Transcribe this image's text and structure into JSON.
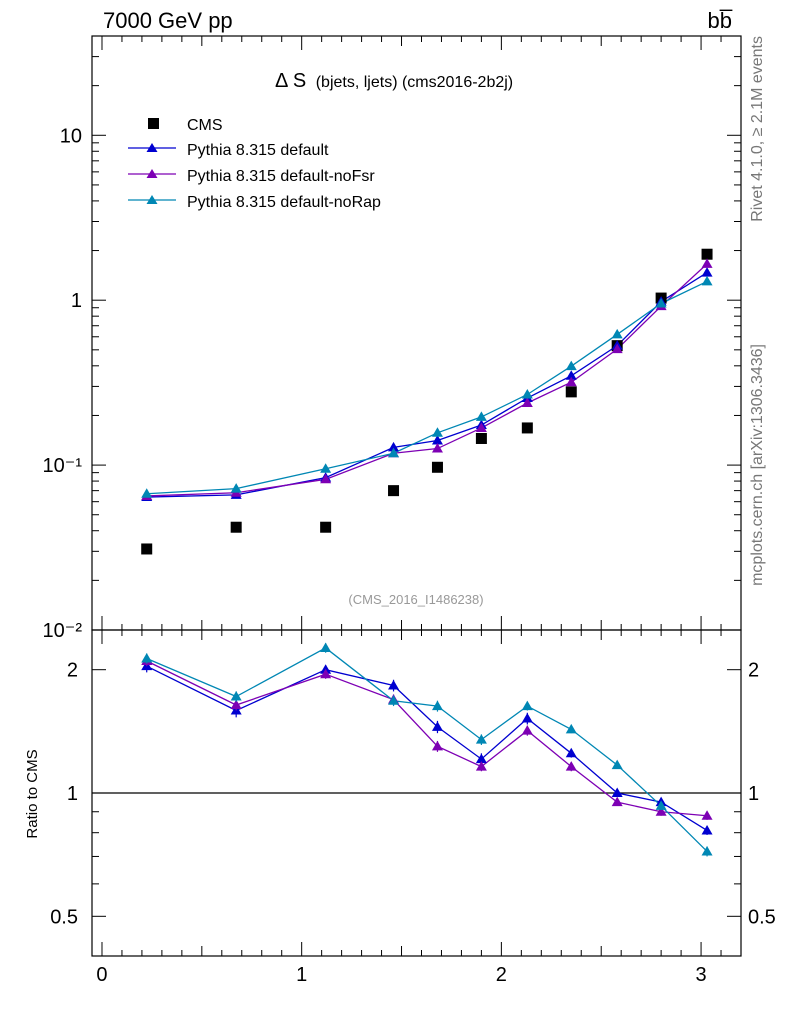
{
  "header": {
    "left": "7000 GeV pp",
    "right": "bb̅"
  },
  "side_labels": {
    "rivet": "Rivet 4.1.0, ≥ 2.1M events",
    "mcplots": "mcplots.cern.ch [arXiv:1306.3436]"
  },
  "chart_data": [
    {
      "type": "scatter",
      "title": "Δ S",
      "title_suffix": "(bjets, ljets) (cms2016-2b2j)",
      "watermark": "(CMS_2016_I1486238)",
      "yscale": "log",
      "ylim": [
        0.01,
        40
      ],
      "xlim": [
        -0.05,
        3.2
      ],
      "y_tick_labels": [
        "10",
        "1",
        "10⁻¹",
        "10⁻²"
      ],
      "x": [
        0.224,
        0.672,
        1.12,
        1.46,
        1.68,
        1.9,
        2.13,
        2.35,
        2.58,
        2.8,
        3.03
      ],
      "legend_position": "top-left",
      "series": [
        {
          "name": "CMS",
          "color": "#000000",
          "marker": "square",
          "values": [
            0.031,
            0.042,
            0.042,
            0.07,
            0.097,
            0.145,
            0.168,
            0.278,
            0.53,
            1.03,
            1.9
          ]
        },
        {
          "name": "Pythia 8.315 default",
          "color": "#0000d0",
          "marker": "triangle",
          "values": [
            0.064,
            0.066,
            0.084,
            0.128,
            0.141,
            0.175,
            0.255,
            0.348,
            0.53,
            0.98,
            1.47
          ]
        },
        {
          "name": "Pythia 8.315 default-noFsr",
          "color": "#7d00b4",
          "marker": "triangle",
          "values": [
            0.065,
            0.068,
            0.082,
            0.118,
            0.126,
            0.168,
            0.238,
            0.318,
            0.505,
            0.92,
            1.66
          ]
        },
        {
          "name": "Pythia 8.315 default-noRap",
          "color": "#0087b4",
          "marker": "triangle",
          "values": [
            0.067,
            0.072,
            0.095,
            0.118,
            0.157,
            0.196,
            0.268,
            0.398,
            0.62,
            0.955,
            1.3
          ]
        }
      ]
    },
    {
      "type": "line",
      "ylabel": "Ratio to CMS",
      "yscale": "log",
      "ylim": [
        0.4,
        2.5
      ],
      "xlim": [
        -0.05,
        3.2
      ],
      "x": [
        0.224,
        0.672,
        1.12,
        1.46,
        1.68,
        1.9,
        2.13,
        2.35,
        2.58,
        2.8,
        3.03
      ],
      "y_tick_labels": [
        "2",
        "1",
        "0.5"
      ],
      "y_tick_values": [
        2,
        1,
        0.5
      ],
      "x_tick_labels": [
        "0",
        "1",
        "2",
        "3"
      ],
      "x_tick_values": [
        0,
        1,
        2,
        3
      ],
      "reference_line": 1,
      "series": [
        {
          "name": "Pythia 8.315 default",
          "color": "#0000d0",
          "values": [
            2.04,
            1.59,
            2.0,
            1.83,
            1.45,
            1.21,
            1.52,
            1.25,
            1.0,
            0.95,
            0.81
          ],
          "errors": [
            0.07,
            0.06,
            0.05,
            0.06,
            0.05,
            0.04,
            0.05,
            0.03,
            0.02,
            0.02,
            0.02
          ]
        },
        {
          "name": "Pythia 8.315 default-noFsr",
          "color": "#7d00b4",
          "values": [
            2.1,
            1.64,
            1.95,
            1.69,
            1.3,
            1.16,
            1.42,
            1.16,
            0.95,
            0.9,
            0.88
          ],
          "errors": [
            0.06,
            0.05,
            0.05,
            0.05,
            0.04,
            0.03,
            0.04,
            0.03,
            0.02,
            0.02,
            0.02
          ]
        },
        {
          "name": "Pythia 8.315 default-noRap",
          "color": "#0087b4",
          "values": [
            2.13,
            1.72,
            2.26,
            1.68,
            1.63,
            1.35,
            1.63,
            1.43,
            1.17,
            0.93,
            0.72
          ],
          "errors": [
            0.06,
            0.05,
            0.06,
            0.05,
            0.05,
            0.04,
            0.04,
            0.03,
            0.02,
            0.02,
            0.02
          ]
        }
      ]
    }
  ]
}
